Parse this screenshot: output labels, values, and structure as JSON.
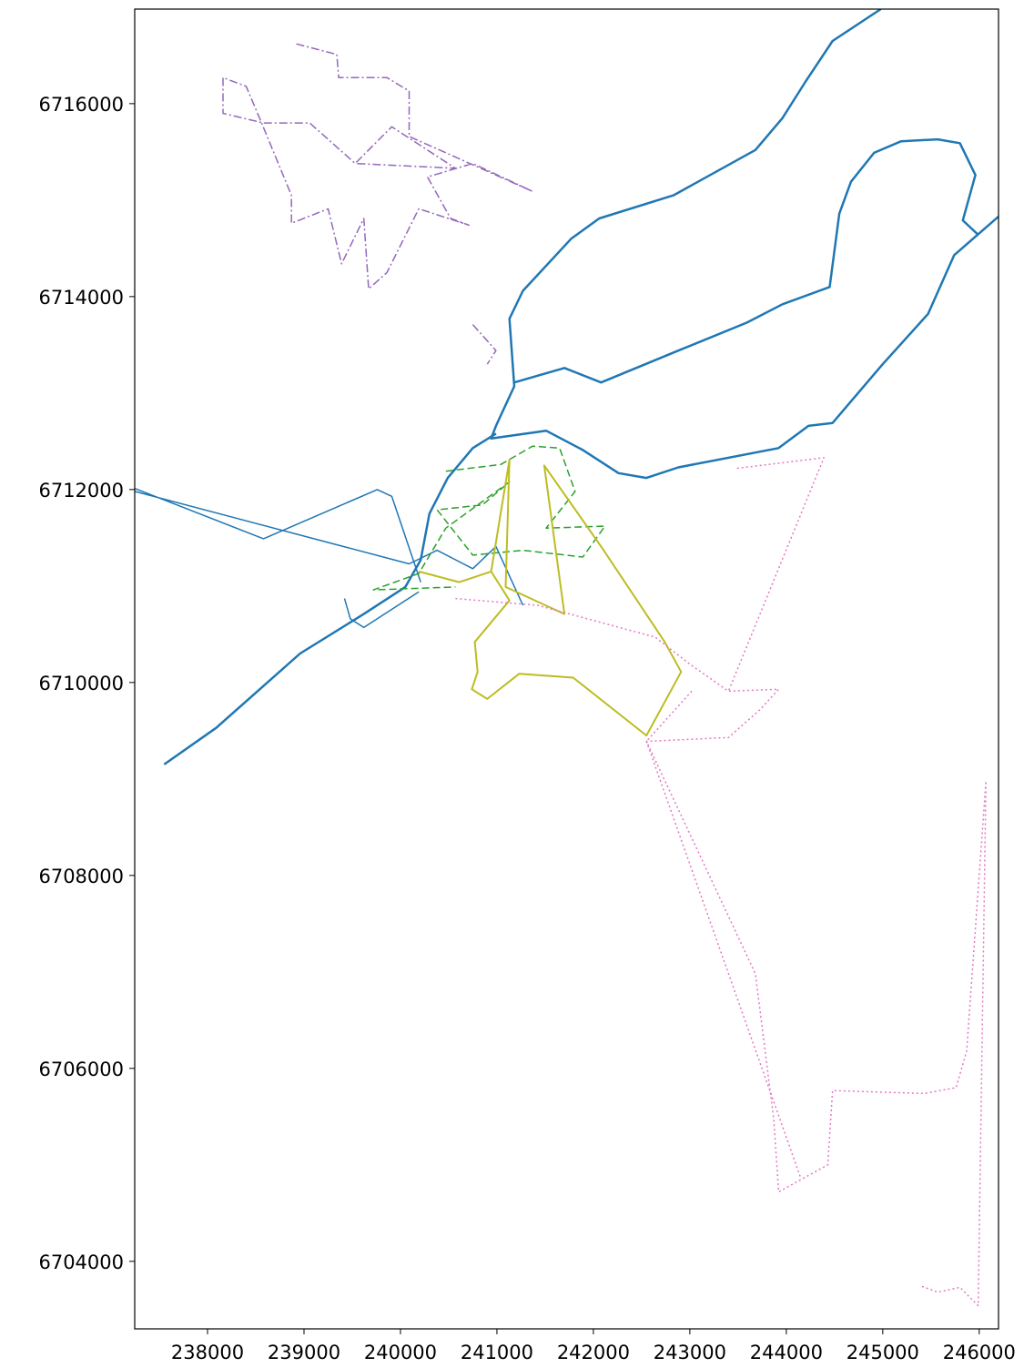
{
  "chart_data": {
    "type": "line",
    "xlim": [
      237245,
      246200
    ],
    "ylim": [
      6703300,
      6716980
    ],
    "xticks": [
      238000,
      239000,
      240000,
      241000,
      242000,
      243000,
      244000,
      245000,
      246000
    ],
    "yticks": [
      6704000,
      6706000,
      6708000,
      6710000,
      6712000,
      6714000,
      6716000
    ],
    "series": [
      {
        "color": "#1f77b4",
        "linestyle": "solid",
        "width": 2.5,
        "x": [
          244980,
          244480,
          244200,
          243960,
          243680,
          242830,
          242060,
          241770,
          241270,
          241130,
          241180,
          240990,
          240940,
          241510,
          241890,
          242260,
          242550,
          242880,
          243920,
          244230,
          244480,
          245000,
          245470,
          245740,
          246200
        ],
        "values": [
          6716980,
          6716650,
          6716230,
          6715850,
          6715520,
          6715050,
          6714810,
          6714600,
          6714060,
          6713770,
          6713070,
          6712660,
          6712530,
          6712610,
          6712410,
          6712170,
          6712120,
          6712230,
          6712430,
          6712660,
          6712690,
          6713300,
          6713820,
          6714430,
          6714830
        ]
      },
      {
        "color": "#1f77b4",
        "linestyle": "solid",
        "width": 2.5,
        "x": [
          240990,
          240750,
          240490,
          240300,
          240210,
          240050,
          239620,
          238960,
          238090,
          237550
        ],
        "values": [
          6712580,
          6712430,
          6712120,
          6711750,
          6711270,
          6710990,
          6710710,
          6710300,
          6709530,
          6709150
        ]
      },
      {
        "color": "#1f77b4",
        "linestyle": "solid",
        "width": 2.5,
        "x": [
          241180,
          241700,
          242080,
          242880,
          243590,
          243960,
          244450,
          244550,
          244670,
          244910,
          245190,
          245570,
          245800,
          245960,
          245830,
          245990
        ],
        "values": [
          6713110,
          6713260,
          6713110,
          6713440,
          6713730,
          6713920,
          6714100,
          6714860,
          6715190,
          6715490,
          6715610,
          6715630,
          6715590,
          6715260,
          6714790,
          6714640
        ]
      },
      {
        "color": "#1f77b4",
        "linestyle": "solid",
        "width": 1.5,
        "x": [
          237250,
          238580,
          239760,
          239910,
          240210,
          null,
          237250,
          240090,
          240380,
          240750,
          240990,
          241270,
          null,
          239420,
          239480,
          239620,
          240190
        ],
        "values": [
          6712010,
          6711490,
          6712000,
          6711930,
          6711040,
          null,
          6711980,
          6711230,
          6711370,
          6711180,
          6711410,
          6710800,
          null,
          6710870,
          6710660,
          6710570,
          6710940
        ]
      },
      {
        "color": "#9467bd",
        "linestyle": "dashdot",
        "width": 1.5,
        "x": [
          238920,
          239340,
          239360,
          239860,
          240090,
          240090,
          241370,
          240750,
          240280,
          240520,
          240710,
          240190,
          239860,
          239670,
          239620,
          239390,
          239250,
          238870,
          238870,
          238540,
          238400,
          238160,
          238160,
          238580,
          239060,
          239530,
          239910,
          240570,
          239530,
          null,
          240750,
          240990,
          240900
        ],
        "values": [
          6716620,
          6716510,
          6716270,
          6716270,
          6716130,
          6715660,
          6715090,
          6715380,
          6715240,
          6714810,
          6714740,
          6714910,
          6714250,
          6714080,
          6714810,
          6714340,
          6714910,
          6714760,
          6715050,
          6715850,
          6716180,
          6716270,
          6715900,
          6715800,
          6715800,
          6715380,
          6715760,
          6715330,
          6715380,
          null,
          6713710,
          6713440,
          6713300
        ]
      },
      {
        "color": "#2ca02c",
        "linestyle": "dashed",
        "width": 1.5,
        "x": [
          240470,
          241040,
          241370,
          241650,
          241810,
          241510,
          242120,
          241890,
          241270,
          240750,
          240380,
          240850,
          241130,
          240470,
          240190,
          239720,
          240570
        ],
        "values": [
          6712190,
          6712260,
          6712450,
          6712430,
          6711980,
          6711600,
          6711620,
          6711300,
          6711370,
          6711320,
          6711790,
          6711840,
          6712080,
          6711600,
          6711130,
          6710960,
          6710990
        ]
      },
      {
        "color": "#bcbd22",
        "linestyle": "solid",
        "width": 2,
        "x": [
          240190,
          240610,
          240940,
          241130,
          241090,
          241700,
          241490,
          242080,
          242740,
          242910,
          242550,
          241790,
          241230,
          240900,
          240740,
          240800,
          240770,
          241130,
          240940
        ],
        "values": [
          6711150,
          6711040,
          6711150,
          6712310,
          6710990,
          6710710,
          6712250,
          6711410,
          6710420,
          6710110,
          6709450,
          6710050,
          6710090,
          6709830,
          6709930,
          6710110,
          6710420,
          6710850,
          6711150
        ]
      },
      {
        "color": "#e377c2",
        "linestyle": "dotted",
        "width": 1.5,
        "x": [
          240570,
          241420,
          242640,
          243000,
          243400,
          243920,
          243730,
          243400,
          242550,
          243680,
          243870,
          243920,
          244430,
          244480,
          245430,
          245760,
          245870,
          246070,
          245990,
          245800,
          245570,
          245380,
          null,
          243490,
          244390,
          243400,
          null,
          242550,
          244150,
          null,
          243020,
          242550
        ],
        "values": [
          6710870,
          6710800,
          6710470,
          6710190,
          6709910,
          6709930,
          6709720,
          6709430,
          6709390,
          6706980,
          6705470,
          6704720,
          6705000,
          6705770,
          6705740,
          6705800,
          6706180,
          6708980,
          6703540,
          6703730,
          6703680,
          6703750,
          null,
          6712220,
          6712330,
          6709910,
          null,
          6709390,
          6704860,
          null,
          6709910,
          6709390
        ]
      }
    ]
  }
}
